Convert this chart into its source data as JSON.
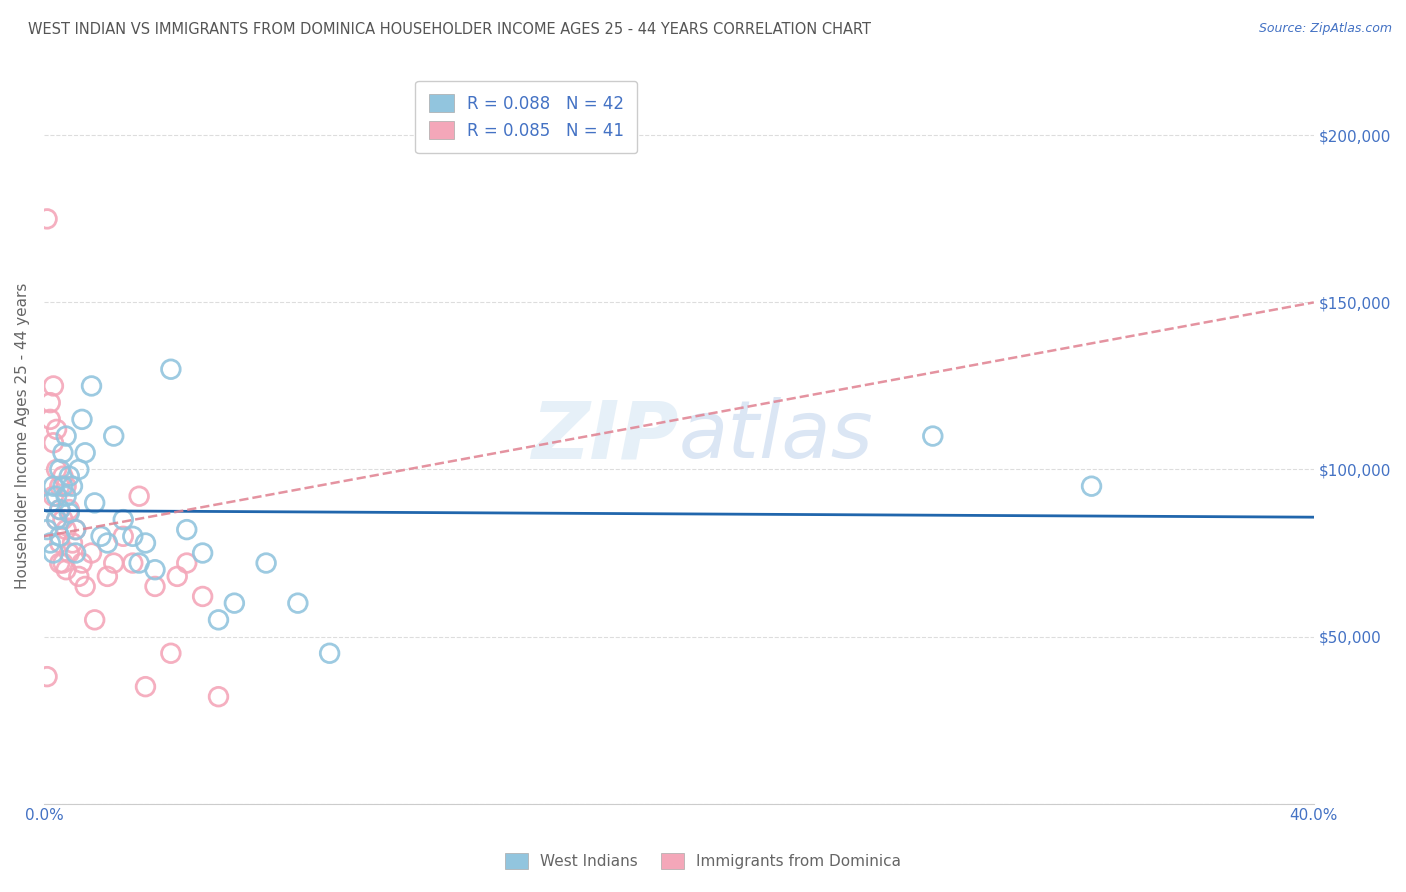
{
  "title": "WEST INDIAN VS IMMIGRANTS FROM DOMINICA HOUSEHOLDER INCOME AGES 25 - 44 YEARS CORRELATION CHART",
  "source": "Source: ZipAtlas.com",
  "ylabel": "Householder Income Ages 25 - 44 years",
  "watermark": "ZIPatlas",
  "xlim": [
    0.0,
    0.4
  ],
  "ylim": [
    0,
    220000
  ],
  "blue_color": "#92c5de",
  "pink_color": "#f4a7b9",
  "blue_line_color": "#2166ac",
  "pink_line_color": "#e08090",
  "title_color": "#555555",
  "axis_label_color": "#666666",
  "tick_label_color": "#4472c4",
  "background_color": "#ffffff",
  "grid_color": "#dddddd",
  "west_indian_x": [
    0.001,
    0.002,
    0.002,
    0.003,
    0.003,
    0.004,
    0.004,
    0.005,
    0.005,
    0.005,
    0.006,
    0.006,
    0.007,
    0.007,
    0.008,
    0.008,
    0.009,
    0.01,
    0.01,
    0.011,
    0.012,
    0.013,
    0.015,
    0.016,
    0.018,
    0.02,
    0.022,
    0.025,
    0.028,
    0.03,
    0.032,
    0.035,
    0.04,
    0.045,
    0.05,
    0.055,
    0.06,
    0.07,
    0.08,
    0.09,
    0.28,
    0.33
  ],
  "west_indian_y": [
    82000,
    90000,
    78000,
    95000,
    75000,
    85000,
    92000,
    100000,
    88000,
    80000,
    95000,
    105000,
    92000,
    110000,
    98000,
    87000,
    95000,
    82000,
    75000,
    100000,
    115000,
    105000,
    125000,
    90000,
    80000,
    78000,
    110000,
    85000,
    80000,
    72000,
    78000,
    70000,
    130000,
    82000,
    75000,
    55000,
    60000,
    72000,
    60000,
    45000,
    110000,
    95000
  ],
  "dominica_x": [
    0.001,
    0.001,
    0.002,
    0.002,
    0.003,
    0.003,
    0.003,
    0.004,
    0.004,
    0.004,
    0.005,
    0.005,
    0.005,
    0.005,
    0.006,
    0.006,
    0.006,
    0.007,
    0.007,
    0.007,
    0.008,
    0.008,
    0.009,
    0.01,
    0.011,
    0.012,
    0.013,
    0.015,
    0.016,
    0.02,
    0.022,
    0.025,
    0.028,
    0.03,
    0.032,
    0.035,
    0.04,
    0.042,
    0.045,
    0.05,
    0.055
  ],
  "dominica_y": [
    175000,
    38000,
    120000,
    115000,
    125000,
    108000,
    92000,
    112000,
    100000,
    85000,
    95000,
    88000,
    78000,
    72000,
    98000,
    85000,
    72000,
    95000,
    82000,
    70000,
    88000,
    75000,
    78000,
    82000,
    68000,
    72000,
    65000,
    75000,
    55000,
    68000,
    72000,
    80000,
    72000,
    92000,
    35000,
    65000,
    45000,
    68000,
    72000,
    62000,
    32000
  ]
}
